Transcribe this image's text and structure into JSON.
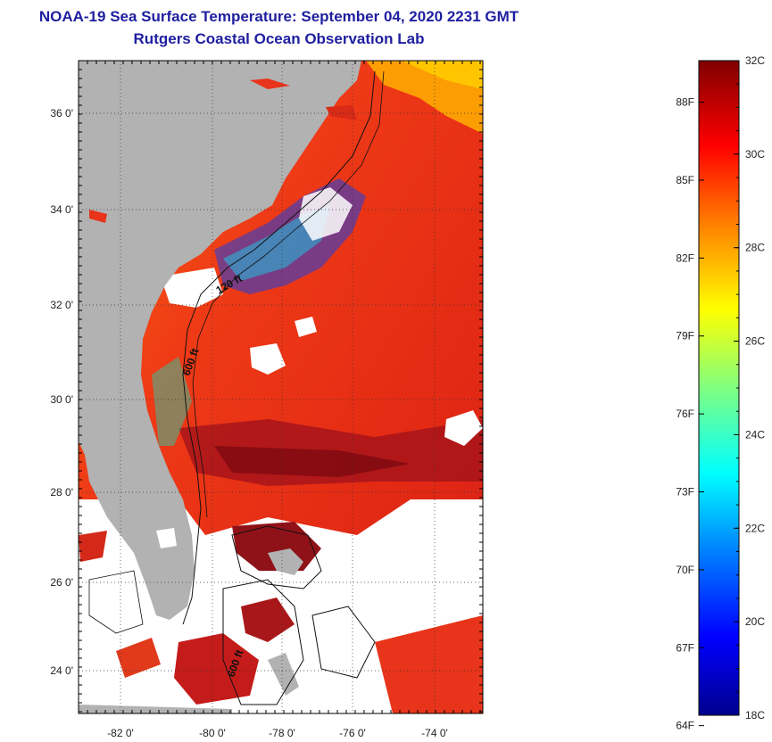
{
  "header": {
    "title": "NOAA-19 Sea Surface Temperature:  September 04, 2020 2231 GMT",
    "subtitle": "Rutgers Coastal Ocean Observation Lab"
  },
  "map": {
    "lat_labels": [
      "36 0'",
      "34 0'",
      "32 0'",
      "30 0'",
      "28 0'",
      "26 0'",
      "24 0'"
    ],
    "lon_labels": [
      "-82 0'",
      "-80 0'",
      "-78 0'",
      "-76 0'",
      "-74 0'"
    ],
    "contours": [
      "120 ft",
      "600 ft",
      "600 ft"
    ],
    "colors": {
      "land": "#b2b2b2",
      "cloud": "#ffffff",
      "warm_sst": "#e8341a",
      "hot_sst": "#9a0f10",
      "cool_sst": "#1a40e0"
    }
  },
  "colorbar": {
    "f_labels": [
      "88F",
      "85F",
      "82F",
      "79F",
      "76F",
      "73F",
      "70F",
      "67F",
      "64F"
    ],
    "c_labels": [
      "32C",
      "30C",
      "28C",
      "26C",
      "24C",
      "22C",
      "20C",
      "18C"
    ],
    "range_c": [
      18,
      32
    ],
    "range_f": [
      64,
      90
    ]
  }
}
